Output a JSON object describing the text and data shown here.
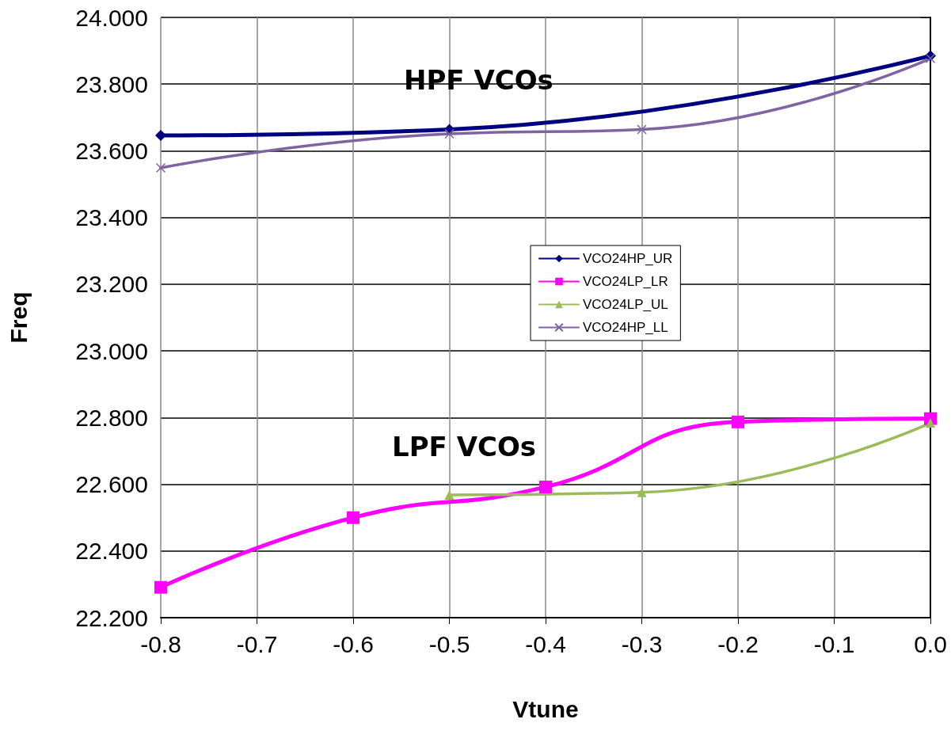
{
  "chart_data": {
    "type": "line",
    "xlabel": "Vtune",
    "ylabel": "Freq",
    "xlim": [
      -0.8,
      0
    ],
    "xticks": [
      -0.8,
      -0.7,
      -0.6,
      -0.5,
      -0.4,
      -0.3,
      -0.2,
      -0.1,
      {
        "value": 0,
        "label": "0.0"
      }
    ],
    "ylim": [
      22.2,
      24
    ],
    "yticks": [
      {
        "value": 22.2,
        "label": "22.200"
      },
      {
        "value": 22.4,
        "label": "22.400"
      },
      {
        "value": 22.6,
        "label": "22.600"
      },
      {
        "value": 22.8,
        "label": "22.800"
      },
      {
        "value": 23,
        "label": "23.000"
      },
      {
        "value": 23.2,
        "label": "23.200"
      },
      {
        "value": 23.4,
        "label": "23.400"
      },
      {
        "value": 23.6,
        "label": "23.600"
      },
      {
        "value": 23.8,
        "label": "23.800"
      },
      {
        "value": 24,
        "label": "24.000"
      }
    ],
    "grid": true,
    "legend": "right",
    "line_style": "solid",
    "series": [
      {
        "name": "VCO24HP_UR",
        "color": "#000080",
        "marker": "diamond",
        "x": [
          -0.8,
          -0.5,
          0
        ],
        "values": [
          23.646,
          23.664,
          23.885
        ]
      },
      {
        "name": "VCO24LP_LR",
        "color": "#ff00ff",
        "marker": "square",
        "x": [
          -0.8,
          -0.6,
          -0.4,
          -0.2,
          0
        ],
        "values": [
          22.291,
          22.5,
          22.592,
          22.787,
          22.797
        ]
      },
      {
        "name": "VCO24LP_UL",
        "color": "#9bbb59",
        "marker": "triangle",
        "x": [
          -0.5,
          -0.3,
          0
        ],
        "values": [
          22.568,
          22.576,
          22.784
        ]
      },
      {
        "name": "VCO24HP_LL",
        "color": "#8064a2",
        "marker": "cross",
        "x": [
          -0.8,
          -0.5,
          -0.3,
          0
        ],
        "values": [
          23.549,
          23.651,
          23.664,
          23.877
        ]
      }
    ],
    "annotations": [
      "HPF VCOs",
      "LPF VCOs"
    ]
  }
}
